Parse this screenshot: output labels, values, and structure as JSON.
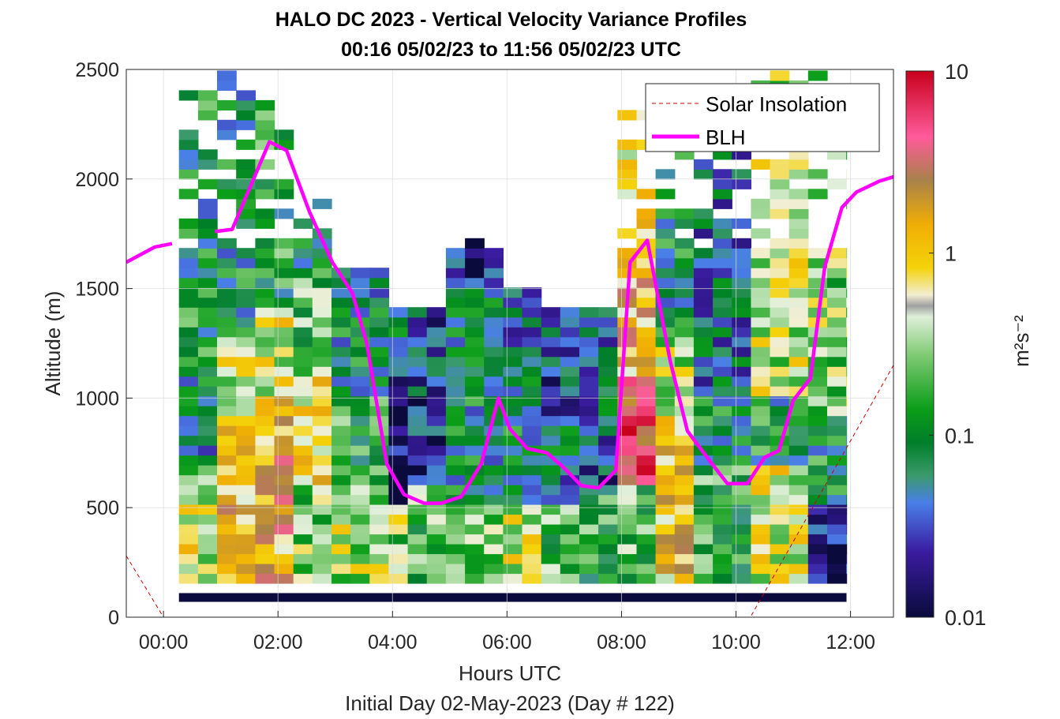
{
  "chart_data": {
    "type": "heatmap",
    "title": [
      "HALO DC 2023 - Vertical Velocity Variance Profiles",
      "00:16 05/02/23 to 11:56 05/02/23  UTC"
    ],
    "xlabel": "Hours UTC",
    "xlabel2": "Initial Day 02-May-2023 (Day # 122)",
    "ylabel": "Altitude (m)",
    "xlim_hours": [
      -0.65,
      12.75
    ],
    "ylim": [
      0,
      2500
    ],
    "xticks": [
      {
        "v": 0,
        "label": "00:00"
      },
      {
        "v": 2,
        "label": "02:00"
      },
      {
        "v": 4,
        "label": "04:00"
      },
      {
        "v": 6,
        "label": "06:00"
      },
      {
        "v": 8,
        "label": "08:00"
      },
      {
        "v": 10,
        "label": "10:00"
      },
      {
        "v": 12,
        "label": "12:00"
      }
    ],
    "yticks": [
      {
        "v": 0,
        "label": "0"
      },
      {
        "v": 500,
        "label": "500"
      },
      {
        "v": 1000,
        "label": "1000"
      },
      {
        "v": 1500,
        "label": "1500"
      },
      {
        "v": 2000,
        "label": "2000"
      },
      {
        "v": 2500,
        "label": "2500"
      }
    ],
    "grid": true,
    "colorbar": {
      "label": "m²s⁻²",
      "scale": "log",
      "range": [
        0.01,
        10
      ],
      "ticks": [
        {
          "v": 0.01,
          "label": "0.01"
        },
        {
          "v": 0.1,
          "label": "0.1"
        },
        {
          "v": 1,
          "label": "1"
        },
        {
          "v": 10,
          "label": "10"
        }
      ]
    },
    "legend": {
      "placement": "top-right",
      "entries": [
        {
          "name": "Solar Insolation",
          "color": "#cc0000",
          "style": "dashed"
        },
        {
          "name": "BLH",
          "color": "#ff00ff",
          "style": "solid"
        }
      ]
    },
    "heatmap": {
      "time_start_hours": 0.27,
      "time_end_hours": 11.93,
      "time_step_hours": 0.333,
      "altitude_top": 2500,
      "altitude_bottom": 110,
      "altitude_step": 45,
      "lowest_row_value": 0.01,
      "note_columns": "each column: [start_hour, end_hour, [[alt_low, alt_high, variance_m2s2], ...]]",
      "columns": [
        [
          0.27,
          1.0,
          [
            [
              150,
              500,
              0.5
            ],
            [
              500,
              700,
              0.2
            ],
            [
              700,
              1100,
              0.07
            ],
            [
              1100,
              1500,
              0.12
            ],
            [
              1500,
              2000,
              0.08
            ],
            [
              2000,
              2500,
              0.1
            ]
          ]
        ],
        [
          1.0,
          1.6,
          [
            [
              150,
              900,
              1.2
            ],
            [
              900,
              1300,
              0.4
            ],
            [
              1300,
              2200,
              0.09
            ],
            [
              2200,
              2500,
              0.06
            ]
          ]
        ],
        [
          1.6,
          2.3,
          [
            [
              150,
              1000,
              1.4
            ],
            [
              1000,
              1400,
              0.5
            ],
            [
              1400,
              2200,
              0.12
            ],
            [
              2200,
              2500,
              0.2
            ]
          ]
        ],
        [
          2.3,
          3.0,
          [
            [
              150,
              600,
              0.3
            ],
            [
              600,
              1100,
              0.8
            ],
            [
              1100,
              1600,
              0.2
            ],
            [
              1600,
              1900,
              0.1
            ]
          ]
        ],
        [
          3.0,
          3.8,
          [
            [
              150,
              600,
              0.4
            ],
            [
              600,
              1000,
              0.15
            ],
            [
              1000,
              1400,
              0.08
            ],
            [
              1400,
              1600,
              0.05
            ]
          ]
        ],
        [
          3.8,
          4.4,
          [
            [
              150,
              500,
              0.3
            ],
            [
              500,
              1100,
              0.015
            ],
            [
              1100,
              1400,
              0.06
            ]
          ]
        ],
        [
          4.4,
          5.0,
          [
            [
              150,
              600,
              0.2
            ],
            [
              600,
              1000,
              0.02
            ],
            [
              1000,
              1400,
              0.03
            ]
          ]
        ],
        [
          5.0,
          5.8,
          [
            [
              150,
              500,
              0.3
            ],
            [
              500,
              1000,
              0.08
            ],
            [
              1000,
              1500,
              0.07
            ],
            [
              1500,
              1750,
              0.02
            ]
          ]
        ],
        [
          5.8,
          6.5,
          [
            [
              150,
              500,
              0.5
            ],
            [
              500,
              1100,
              0.09
            ],
            [
              1100,
              1500,
              0.05
            ]
          ]
        ],
        [
          6.5,
          7.3,
          [
            [
              150,
              500,
              0.2
            ],
            [
              500,
              900,
              0.06
            ],
            [
              900,
              1400,
              0.03
            ]
          ]
        ],
        [
          7.3,
          8.0,
          [
            [
              150,
              600,
              0.15
            ],
            [
              600,
              900,
              0.03
            ],
            [
              900,
              1400,
              0.05
            ]
          ]
        ],
        [
          8.0,
          8.6,
          [
            [
              150,
              600,
              0.2
            ],
            [
              600,
              1100,
              4.0
            ],
            [
              1100,
              1700,
              1.2
            ],
            [
              1700,
              2300,
              0.8
            ]
          ]
        ],
        [
          8.6,
          9.3,
          [
            [
              150,
              900,
              1.0
            ],
            [
              900,
              1300,
              0.4
            ],
            [
              1300,
              2200,
              0.09
            ]
          ]
        ],
        [
          9.3,
          10.2,
          [
            [
              150,
              700,
              0.15
            ],
            [
              700,
              1000,
              0.1
            ],
            [
              1000,
              2300,
              0.05
            ]
          ]
        ],
        [
          10.2,
          11.2,
          [
            [
              150,
              700,
              0.5
            ],
            [
              700,
              1000,
              0.1
            ],
            [
              1000,
              2500,
              0.4
            ]
          ]
        ],
        [
          11.2,
          11.93,
          [
            [
              150,
              500,
              0.02
            ],
            [
              500,
              900,
              0.1
            ],
            [
              900,
              2500,
              0.3
            ]
          ]
        ]
      ]
    },
    "series": [
      {
        "name": "BLH",
        "x": [
          -0.65,
          -0.15,
          0.15,
          0.5,
          0.9,
          1.2,
          1.85,
          2.15,
          2.55,
          2.95,
          3.3,
          3.55,
          3.9,
          4.2,
          4.55,
          4.85,
          5.2,
          5.55,
          5.85,
          6.05,
          6.35,
          6.7,
          7.0,
          7.3,
          7.6,
          7.9,
          8.15,
          8.45,
          8.85,
          9.15,
          9.55,
          9.85,
          10.2,
          10.5,
          10.75,
          11.0,
          11.3,
          11.55,
          11.85,
          12.1,
          12.5,
          12.75
        ],
        "y": [
          1620,
          1690,
          1705,
          null,
          1760,
          1770,
          2170,
          2130,
          1850,
          1620,
          1480,
          1250,
          700,
          560,
          520,
          520,
          550,
          700,
          1000,
          860,
          770,
          750,
          680,
          600,
          590,
          670,
          1620,
          1720,
          1170,
          850,
          710,
          610,
          610,
          730,
          760,
          990,
          1090,
          1600,
          1870,
          1940,
          1990,
          2010
        ]
      },
      {
        "name": "Solar Insolation",
        "x": [
          -0.65,
          0.0,
          10.25,
          12.75
        ],
        "y": [
          280,
          0,
          0,
          1150
        ]
      }
    ]
  }
}
